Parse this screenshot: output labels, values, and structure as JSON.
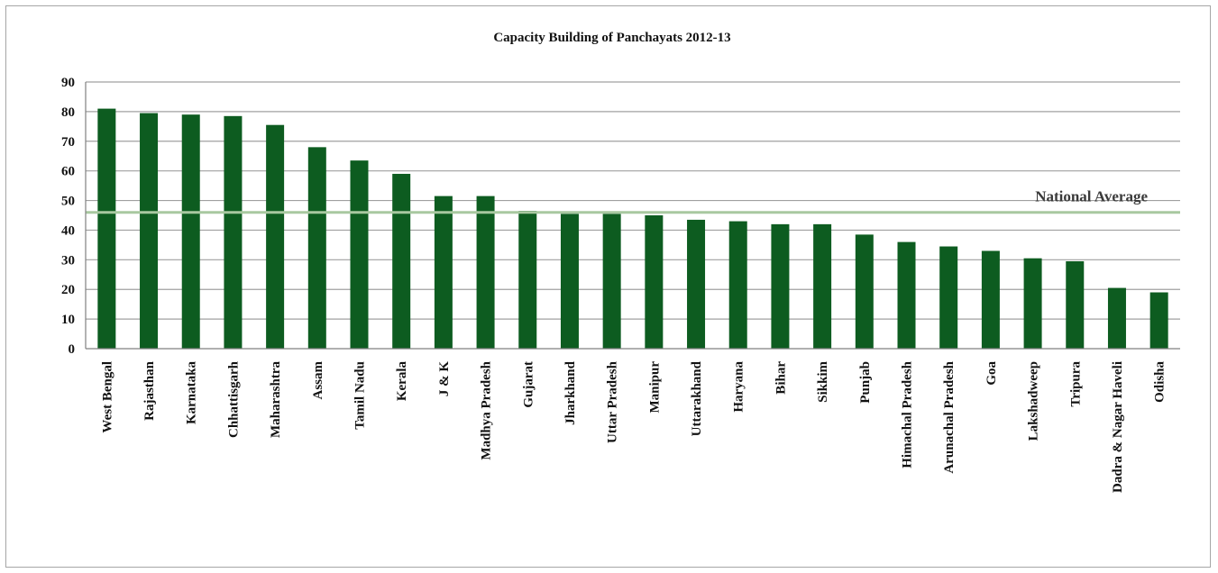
{
  "chart_data": {
    "type": "bar",
    "title": "Capacity Building of Panchayats 2012-13",
    "xlabel": "",
    "ylabel": "",
    "ylim": [
      0,
      90
    ],
    "yticks": [
      0,
      10,
      20,
      30,
      40,
      50,
      60,
      70,
      80,
      90
    ],
    "grid": true,
    "categories": [
      "West Bengal",
      "Rajasthan",
      "Karnataka",
      "Chhattisgarh",
      "Maharashtra",
      "Assam",
      "Tamil Nadu",
      "Kerala",
      "J & K",
      "Madhya Pradesh",
      "Gujarat",
      "Jharkhand",
      "Uttar Pradesh",
      "Manipur",
      "Uttarakhand",
      "Haryana",
      "Bihar",
      "Sikkim",
      "Punjab",
      "Himachal Pradesh",
      "Arunachal Pradesh",
      "Goa",
      "Lakshadweep",
      "Tripura",
      "Dadra & Nagar Haveli",
      "Odisha"
    ],
    "values": [
      81,
      79.5,
      79,
      78.5,
      75.5,
      68,
      63.5,
      59,
      51.5,
      51.5,
      46.5,
      45.5,
      45.5,
      45,
      43.5,
      43,
      42,
      42,
      38.5,
      36,
      34.5,
      33,
      30.5,
      29.5,
      20.5,
      19
    ],
    "reference_line": {
      "label": "National Average",
      "value": 46
    },
    "colors": {
      "bar": "#0d5c20",
      "grid": "#a0a0a0",
      "reference_line": "#a8c8a0",
      "axis": "#808080"
    }
  }
}
